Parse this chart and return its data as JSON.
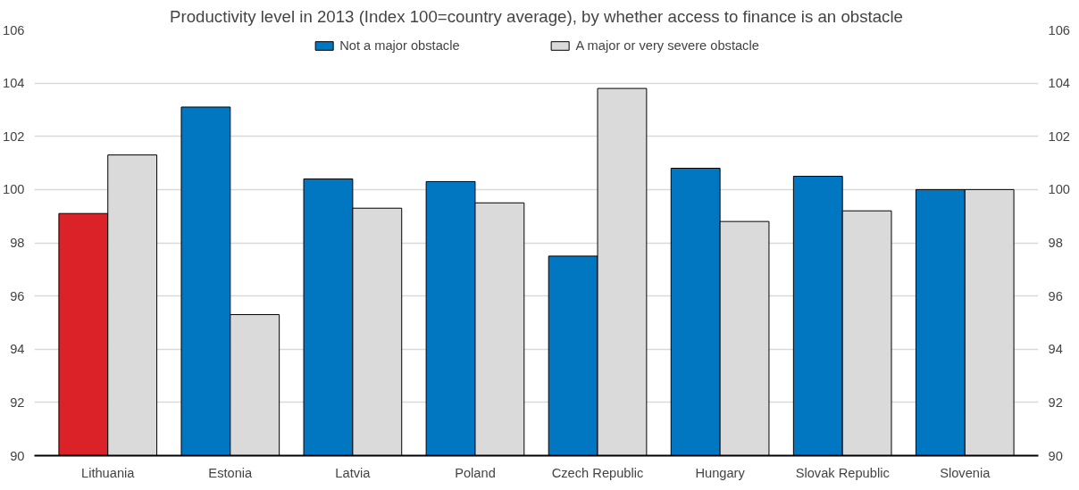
{
  "chart_data": {
    "type": "bar",
    "title": "Productivity level in 2013 (Index 100=country average), by whether access to finance is an obstacle",
    "categories": [
      "Lithuania",
      "Estonia",
      "Latvia",
      "Poland",
      "Czech Republic",
      "Hungary",
      "Slovak Republic",
      "Slovenia"
    ],
    "series": [
      {
        "name": "Not a major obstacle",
        "color": "#0077c0",
        "colors": [
          "#dc2229",
          "#0077c0",
          "#0077c0",
          "#0077c0",
          "#0077c0",
          "#0077c0",
          "#0077c0",
          "#0077c0"
        ],
        "values": [
          99.1,
          103.1,
          100.4,
          100.3,
          97.5,
          100.8,
          100.5,
          100.0
        ]
      },
      {
        "name": "A major or very severe obstacle",
        "color": "#dadada",
        "values": [
          101.3,
          95.3,
          99.3,
          99.5,
          103.8,
          98.8,
          99.2,
          100.0
        ]
      }
    ],
    "ylim": [
      90,
      106
    ],
    "yticks": [
      90,
      92,
      94,
      96,
      98,
      100,
      102,
      104,
      106
    ],
    "y2lim": [
      90,
      106
    ],
    "y2ticks": [
      90,
      92,
      94,
      96,
      98,
      100,
      102,
      104,
      106
    ],
    "grid": "y",
    "legend": "top"
  }
}
